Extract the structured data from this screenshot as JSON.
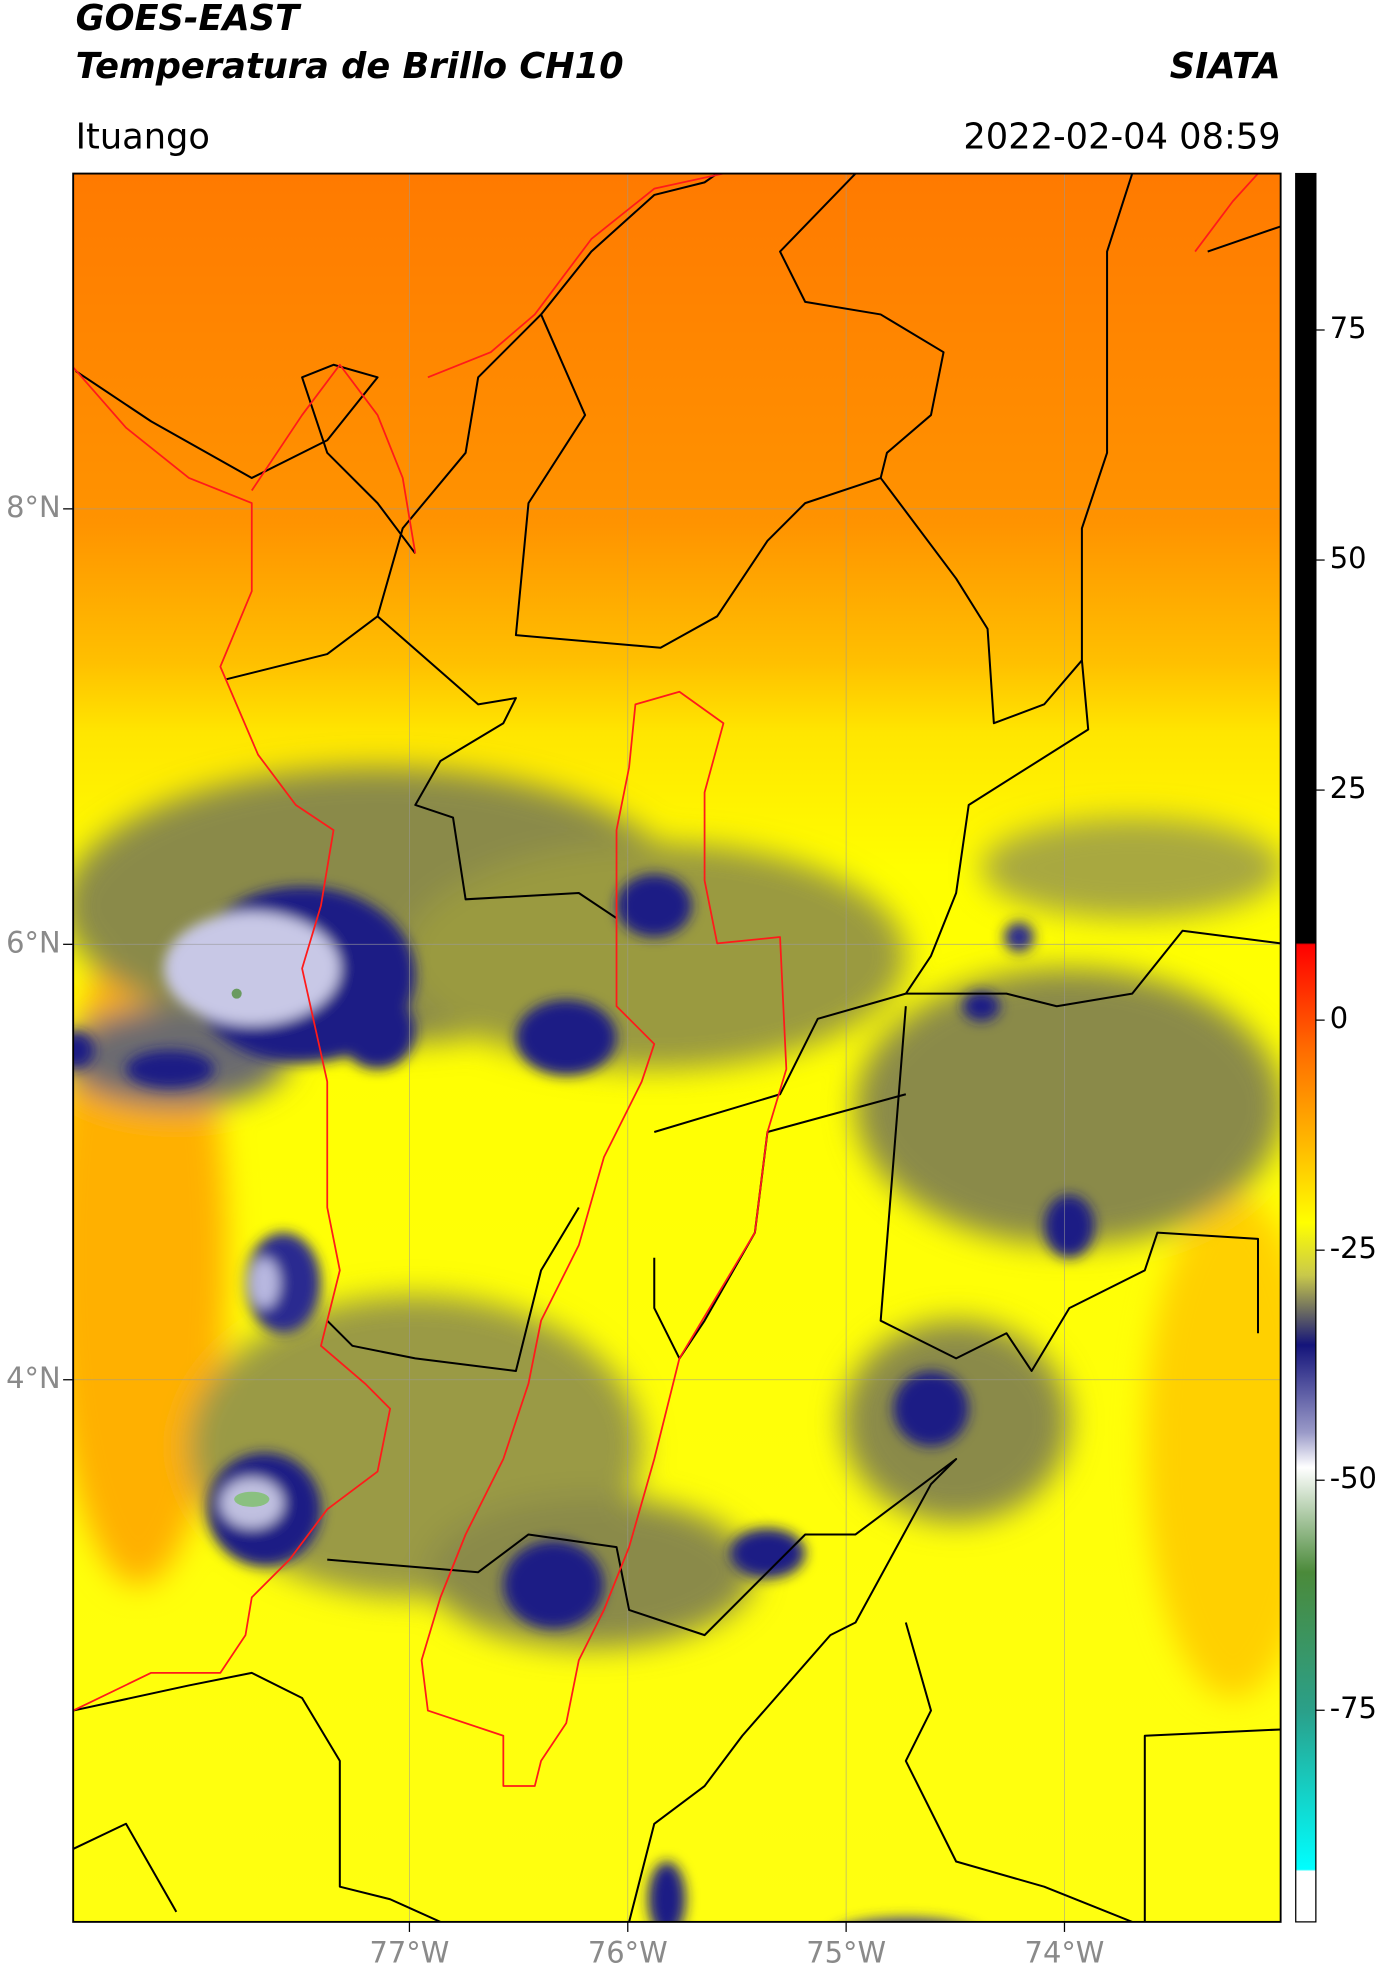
{
  "header": {
    "title": "GOES-EAST",
    "subtitle": "Temperatura de Brillo CH10",
    "source": "SIATA",
    "location": "Ituango",
    "datetime": "2022-02-04 08:59"
  },
  "map": {
    "xlim": [
      -78.54,
      -73.01
    ],
    "ylim": [
      1.51,
      9.54
    ],
    "grid": true,
    "xticks": [
      {
        "value": -77,
        "label": "77°W"
      },
      {
        "value": -76,
        "label": "76°W"
      },
      {
        "value": -75,
        "label": "75°W"
      },
      {
        "value": -74,
        "label": "74°W"
      }
    ],
    "yticks": [
      {
        "value": 8,
        "label": "8°N"
      },
      {
        "value": 6,
        "label": "6°N"
      },
      {
        "value": 4,
        "label": "4°N"
      }
    ]
  },
  "colorbar": {
    "ylim": [
      -98,
      92
    ],
    "yticks": [
      75,
      50,
      25,
      0,
      -25,
      -50,
      -75
    ]
  }
}
